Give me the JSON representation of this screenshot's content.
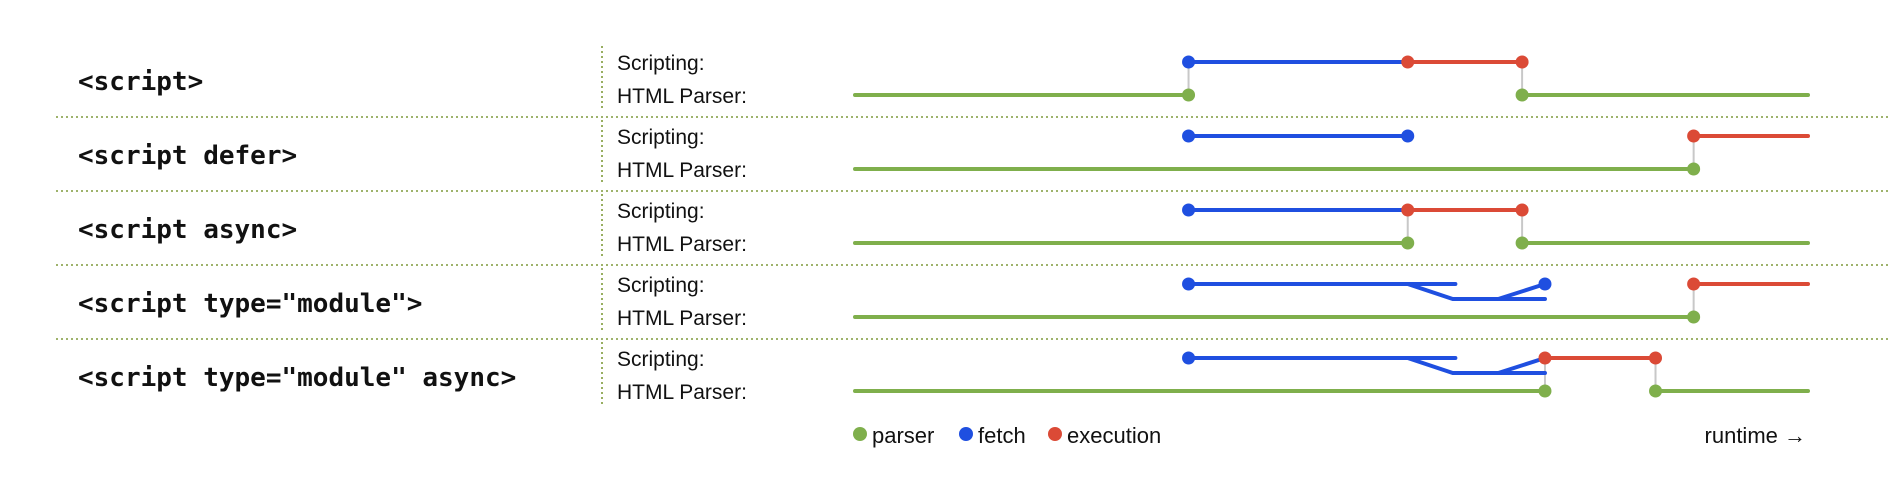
{
  "colors": {
    "parser": "#7faf4c",
    "fetch": "#1f4fe0",
    "execution": "#db4a36",
    "connector": "#c8c8c8",
    "separator": "#7f9a3a"
  },
  "lane_labels": {
    "scripting": "Scripting:",
    "parser": "HTML Parser:"
  },
  "legend": {
    "parser": "parser",
    "fetch": "fetch",
    "execution": "execution",
    "runtime": "runtime →"
  },
  "rows": [
    {
      "tag": "<script>",
      "parser": [
        [
          0,
          35
        ],
        [
          70,
          100
        ]
      ],
      "parser_dots": [
        35,
        70
      ],
      "fetch": [
        [
          35,
          58
        ]
      ],
      "fetch_dots": [
        35
      ],
      "exec": [
        [
          58,
          70
        ]
      ],
      "exec_dots": [
        58,
        70
      ],
      "connectors": [
        35,
        70
      ],
      "branch": null
    },
    {
      "tag": "<script defer>",
      "parser": [
        [
          0,
          88
        ]
      ],
      "parser_dots": [
        88
      ],
      "fetch": [
        [
          35,
          58
        ]
      ],
      "fetch_dots": [
        35,
        58
      ],
      "exec": [
        [
          88,
          100
        ]
      ],
      "exec_dots": [
        88
      ],
      "connectors": [
        88
      ],
      "branch": null
    },
    {
      "tag": "<script async>",
      "parser": [
        [
          0,
          58
        ],
        [
          70,
          100
        ]
      ],
      "parser_dots": [
        58,
        70
      ],
      "fetch": [
        [
          35,
          58
        ]
      ],
      "fetch_dots": [
        35
      ],
      "exec": [
        [
          58,
          70
        ]
      ],
      "exec_dots": [
        58,
        70
      ],
      "connectors": [
        58,
        70
      ],
      "branch": null
    },
    {
      "tag": "<script type=\"module\">",
      "parser": [
        [
          0,
          88
        ]
      ],
      "parser_dots": [
        88
      ],
      "fetch": [
        [
          35,
          63
        ]
      ],
      "fetch_dots": [
        35,
        72.4
      ],
      "exec": [
        [
          88,
          100
        ]
      ],
      "exec_dots": [
        88
      ],
      "connectors": [
        88
      ],
      "branch": {
        "split": 58,
        "mid": 63,
        "lower_end": 72.4,
        "rise_start": 67.5,
        "rise_end": 72.4
      }
    },
    {
      "tag": "<script type=\"module\" async>",
      "parser": [
        [
          0,
          72.4
        ],
        [
          84,
          100
        ]
      ],
      "parser_dots": [
        72.4,
        84
      ],
      "fetch": [
        [
          35,
          63
        ]
      ],
      "fetch_dots": [
        35
      ],
      "exec": [
        [
          72.4,
          84
        ]
      ],
      "exec_dots": [
        72.4,
        84
      ],
      "connectors": [
        72.4,
        84
      ],
      "branch": {
        "split": 58,
        "mid": 63,
        "lower_end": 72.4,
        "rise_start": 67.5,
        "rise_end": 72.4
      }
    }
  ]
}
